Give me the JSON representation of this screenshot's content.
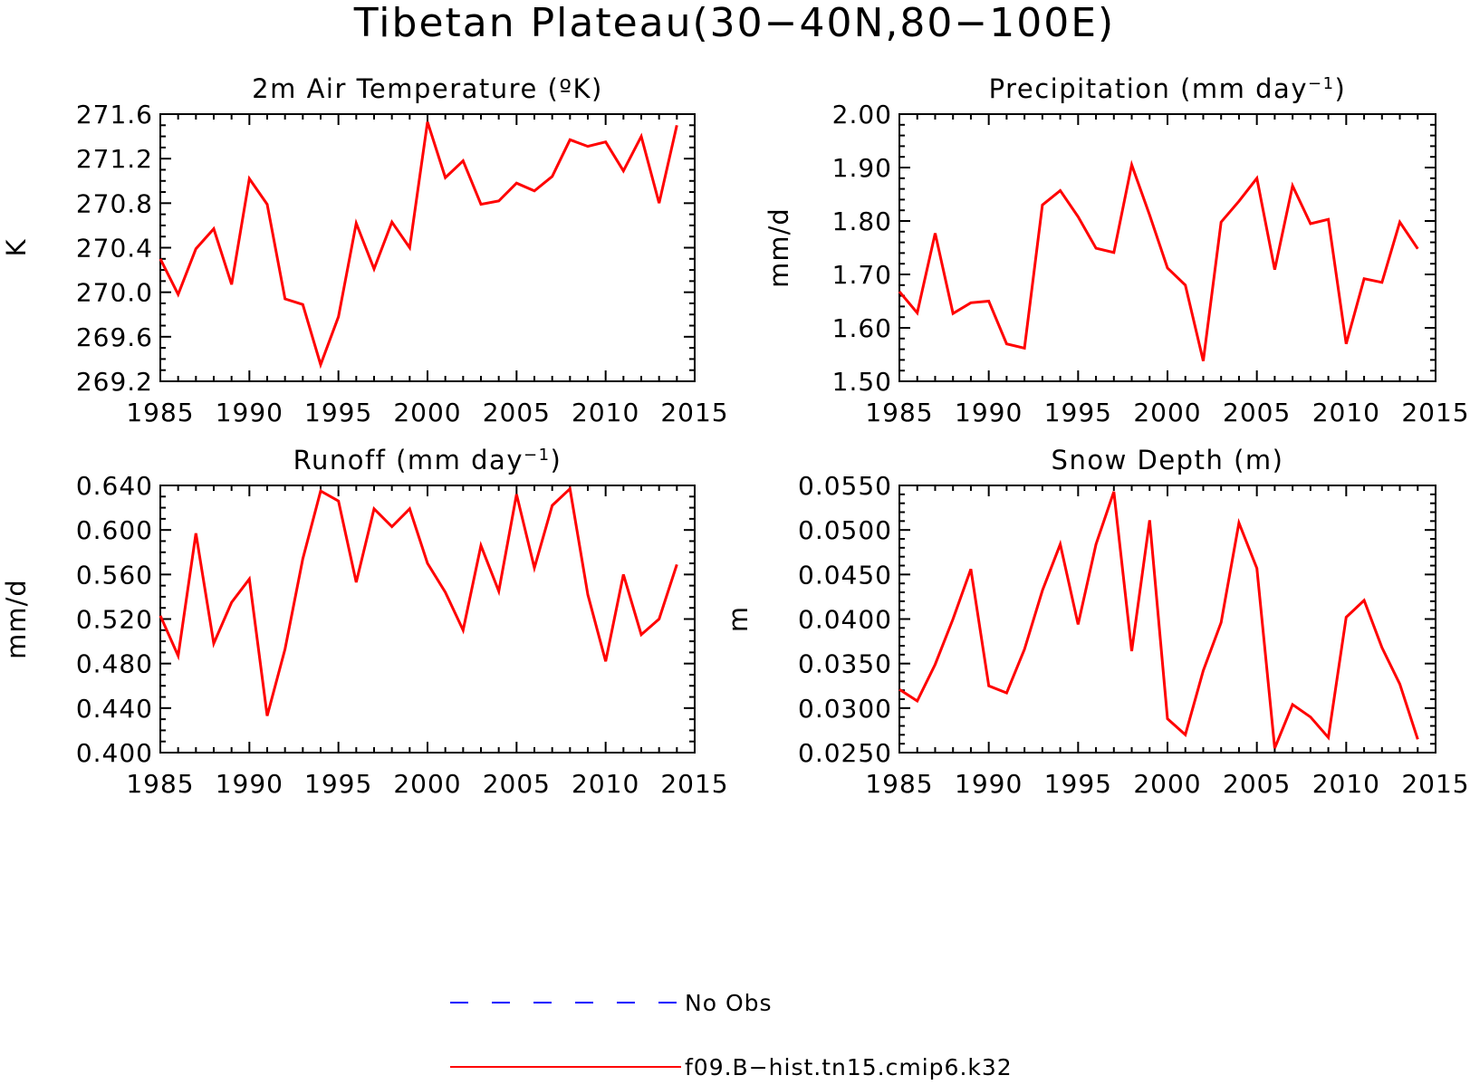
{
  "title": "Tibetan Plateau(30−40N,80−100E)",
  "legend": {
    "placement": "bottom-center",
    "items": [
      {
        "label": "No Obs",
        "color": "#0000ff",
        "style": "dashed"
      },
      {
        "label": "f09.B−hist.tn15.cmip6.k32",
        "color": "#ff0000",
        "style": "solid"
      }
    ]
  },
  "chart_data": [
    {
      "type": "line",
      "title": "2m Air Temperature (ºK)",
      "title_parts": [
        {
          "t": "2m Air Temperature (ºK)"
        }
      ],
      "ylabel": "K",
      "xlim": [
        1985,
        2015
      ],
      "ylim": [
        269.2,
        271.6
      ],
      "xticks": [
        1985,
        1990,
        1995,
        2000,
        2005,
        2010,
        2015
      ],
      "yticks": [
        269.2,
        269.6,
        270.0,
        270.4,
        270.8,
        271.2,
        271.6
      ],
      "ytick_labels": [
        "269.2",
        "269.6",
        "270.0",
        "270.4",
        "270.8",
        "271.2",
        "271.6"
      ],
      "minor_y": 4,
      "grid": false,
      "x": [
        1985,
        1986,
        1987,
        1988,
        1989,
        1990,
        1991,
        1992,
        1993,
        1994,
        1995,
        1996,
        1997,
        1998,
        1999,
        2000,
        2001,
        2002,
        2003,
        2004,
        2005,
        2006,
        2007,
        2008,
        2009,
        2010,
        2011,
        2012,
        2013,
        2014
      ],
      "series": [
        {
          "name": "f09.B−hist.tn15.cmip6.k32",
          "color": "#ff0000",
          "values": [
            270.3,
            269.98,
            270.39,
            270.57,
            270.07,
            271.02,
            270.79,
            269.94,
            269.89,
            269.35,
            269.78,
            270.62,
            270.21,
            270.63,
            270.4,
            271.53,
            271.03,
            271.18,
            270.79,
            270.82,
            270.98,
            270.91,
            271.04,
            271.37,
            271.31,
            271.35,
            271.09,
            271.4,
            270.8,
            271.5
          ]
        }
      ]
    },
    {
      "type": "line",
      "title": "Precipitation (mm day⁻¹)",
      "title_parts": [
        {
          "t": "Precipitation (mm day"
        },
        {
          "t": "−1",
          "sup": true
        },
        {
          "t": ")"
        }
      ],
      "ylabel": "mm/d",
      "xlim": [
        1985,
        2015
      ],
      "ylim": [
        1.5,
        2.0
      ],
      "xticks": [
        1985,
        1990,
        1995,
        2000,
        2005,
        2010,
        2015
      ],
      "yticks": [
        1.5,
        1.6,
        1.7,
        1.8,
        1.9,
        2.0
      ],
      "ytick_labels": [
        "1.50",
        "1.60",
        "1.70",
        "1.80",
        "1.90",
        "2.00"
      ],
      "minor_y": 5,
      "grid": false,
      "x": [
        1985,
        1986,
        1987,
        1988,
        1989,
        1990,
        1991,
        1992,
        1993,
        1994,
        1995,
        1996,
        1997,
        1998,
        1999,
        2000,
        2001,
        2002,
        2003,
        2004,
        2005,
        2006,
        2007,
        2008,
        2009,
        2010,
        2011,
        2012,
        2013,
        2014
      ],
      "series": [
        {
          "name": "f09.B−hist.tn15.cmip6.k32",
          "color": "#ff0000",
          "values": [
            1.668,
            1.628,
            1.777,
            1.627,
            1.647,
            1.65,
            1.57,
            1.562,
            1.83,
            1.857,
            1.808,
            1.749,
            1.741,
            1.905,
            1.811,
            1.712,
            1.68,
            1.538,
            1.798,
            1.837,
            1.88,
            1.709,
            1.866,
            1.795,
            1.803,
            1.57,
            1.692,
            1.685,
            1.798,
            1.748
          ]
        }
      ]
    },
    {
      "type": "line",
      "title": "Runoff (mm day⁻¹)",
      "title_parts": [
        {
          "t": "Runoff (mm day"
        },
        {
          "t": "−1",
          "sup": true
        },
        {
          "t": ")"
        }
      ],
      "ylabel": "mm/d",
      "xlim": [
        1985,
        2015
      ],
      "ylim": [
        0.4,
        0.64
      ],
      "xticks": [
        1985,
        1990,
        1995,
        2000,
        2005,
        2010,
        2015
      ],
      "yticks": [
        0.4,
        0.44,
        0.48,
        0.52,
        0.56,
        0.6,
        0.64
      ],
      "ytick_labels": [
        "0.400",
        "0.440",
        "0.480",
        "0.520",
        "0.560",
        "0.600",
        "0.640"
      ],
      "minor_y": 4,
      "grid": false,
      "x": [
        1985,
        1986,
        1987,
        1988,
        1989,
        1990,
        1991,
        1992,
        1993,
        1994,
        1995,
        1996,
        1997,
        1998,
        1999,
        2000,
        2001,
        2002,
        2003,
        2004,
        2005,
        2006,
        2007,
        2008,
        2009,
        2010,
        2011,
        2012,
        2013,
        2014
      ],
      "series": [
        {
          "name": "f09.B−hist.tn15.cmip6.k32",
          "color": "#ff0000",
          "values": [
            0.523,
            0.487,
            0.597,
            0.498,
            0.535,
            0.556,
            0.433,
            0.493,
            0.574,
            0.635,
            0.626,
            0.553,
            0.619,
            0.603,
            0.619,
            0.57,
            0.544,
            0.51,
            0.586,
            0.545,
            0.632,
            0.566,
            0.622,
            0.637,
            0.542,
            0.482,
            0.56,
            0.506,
            0.52,
            0.569
          ]
        }
      ]
    },
    {
      "type": "line",
      "title": "Snow Depth (m)",
      "title_parts": [
        {
          "t": "Snow Depth (m)"
        }
      ],
      "ylabel": "m",
      "xlim": [
        1985,
        2015
      ],
      "ylim": [
        0.025,
        0.055
      ],
      "xticks": [
        1985,
        1990,
        1995,
        2000,
        2005,
        2010,
        2015
      ],
      "yticks": [
        0.025,
        0.03,
        0.035,
        0.04,
        0.045,
        0.05,
        0.055
      ],
      "ytick_labels": [
        "0.0250",
        "0.0300",
        "0.0350",
        "0.0400",
        "0.0450",
        "0.0500",
        "0.0550"
      ],
      "minor_y": 5,
      "grid": false,
      "x": [
        1985,
        1986,
        1987,
        1988,
        1989,
        1990,
        1991,
        1992,
        1993,
        1994,
        1995,
        1996,
        1997,
        1998,
        1999,
        2000,
        2001,
        2002,
        2003,
        2004,
        2005,
        2006,
        2007,
        2008,
        2009,
        2010,
        2011,
        2012,
        2013,
        2014
      ],
      "series": [
        {
          "name": "f09.B−hist.tn15.cmip6.k32",
          "color": "#ff0000",
          "values": [
            0.0321,
            0.0308,
            0.0349,
            0.04,
            0.0456,
            0.0325,
            0.0317,
            0.0366,
            0.0432,
            0.0484,
            0.0394,
            0.0484,
            0.0543,
            0.0364,
            0.0511,
            0.0288,
            0.027,
            0.0342,
            0.0396,
            0.0508,
            0.0457,
            0.0255,
            0.0304,
            0.029,
            0.0267,
            0.0402,
            0.0421,
            0.0368,
            0.0327,
            0.0265
          ]
        }
      ]
    }
  ]
}
